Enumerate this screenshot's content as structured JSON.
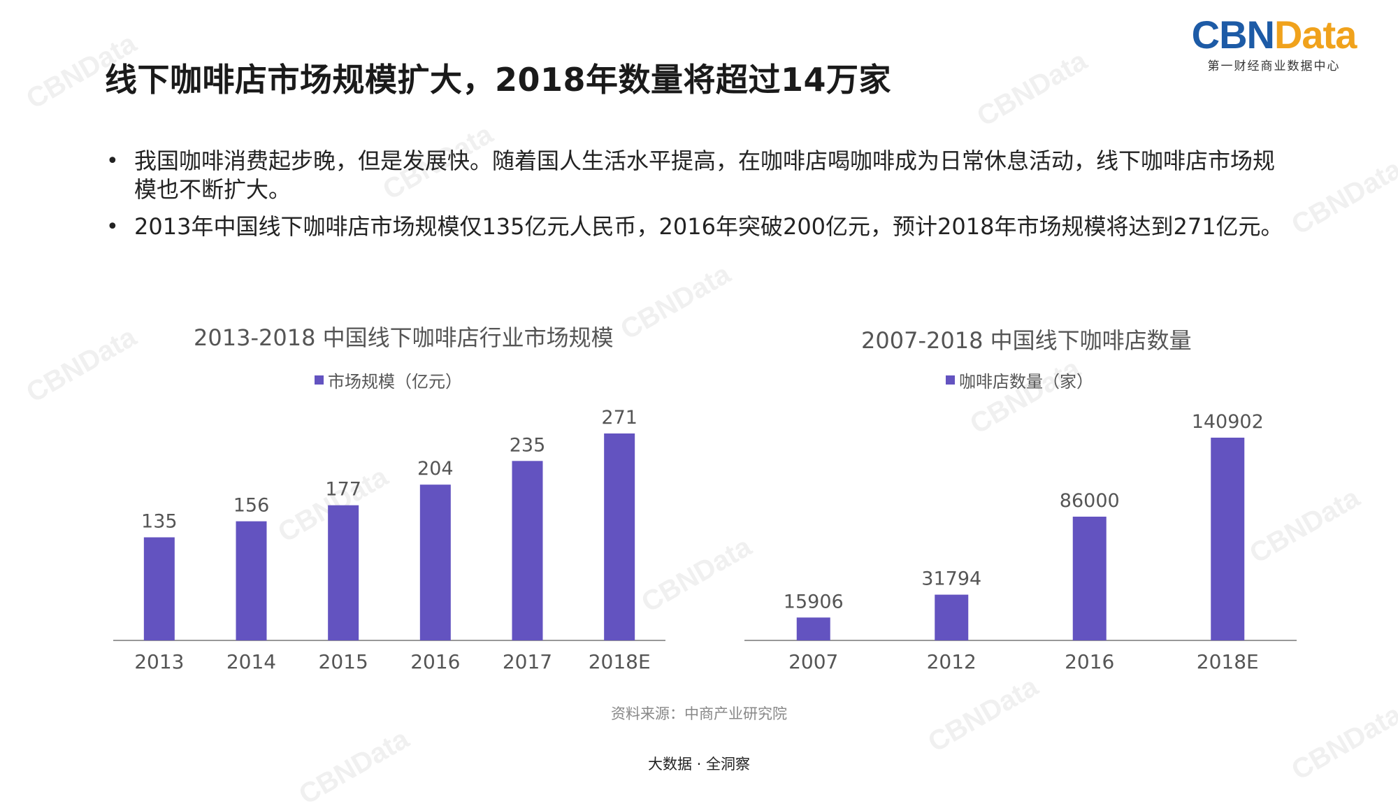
{
  "header": {
    "title": "线下咖啡店市场规模扩大，2018年数量将超过14万家",
    "logo_text_a": "CBN",
    "logo_text_b": "Data",
    "logo_subtitle": "第一财经商业数据中心"
  },
  "bullets": [
    {
      "text": "我国咖啡消费起步晚，但是发展快。随着国人生活水平提高，在咖啡店喝咖啡成为日常休息活动，线下咖啡店市场规模也不断扩大。"
    },
    {
      "text": "2013年中国线下咖啡店市场规模仅135亿元人民币，2016年突破200亿元，预计2018年市场规模将达到271亿元。"
    }
  ],
  "source_note": "资料来源：中商产业研究院",
  "footer_text": "大数据 · 全洞察",
  "watermark_text": "CBNData",
  "colors": {
    "bar": "#6353c0",
    "axis": "#999999",
    "label": "#555555"
  },
  "chart_data": [
    {
      "type": "bar",
      "title": "2013-2018 中国线下咖啡店行业市场规模",
      "categories": [
        "2013",
        "2014",
        "2015",
        "2016",
        "2017",
        "2018E"
      ],
      "series": [
        {
          "name": "市场规模（亿元）",
          "values": [
            135,
            156,
            177,
            204,
            235,
            271
          ]
        }
      ],
      "ylim": [
        0,
        271
      ],
      "grid": false,
      "legend_position": "top-center"
    },
    {
      "type": "bar",
      "title": "2007-2018 中国线下咖啡店数量",
      "categories": [
        "2007",
        "2012",
        "2016",
        "2018E"
      ],
      "series": [
        {
          "name": "咖啡店数量（家）",
          "values": [
            15906,
            31794,
            86000,
            140902
          ]
        }
      ],
      "ylim": [
        0,
        140902
      ],
      "grid": false,
      "legend_position": "top-center"
    }
  ]
}
